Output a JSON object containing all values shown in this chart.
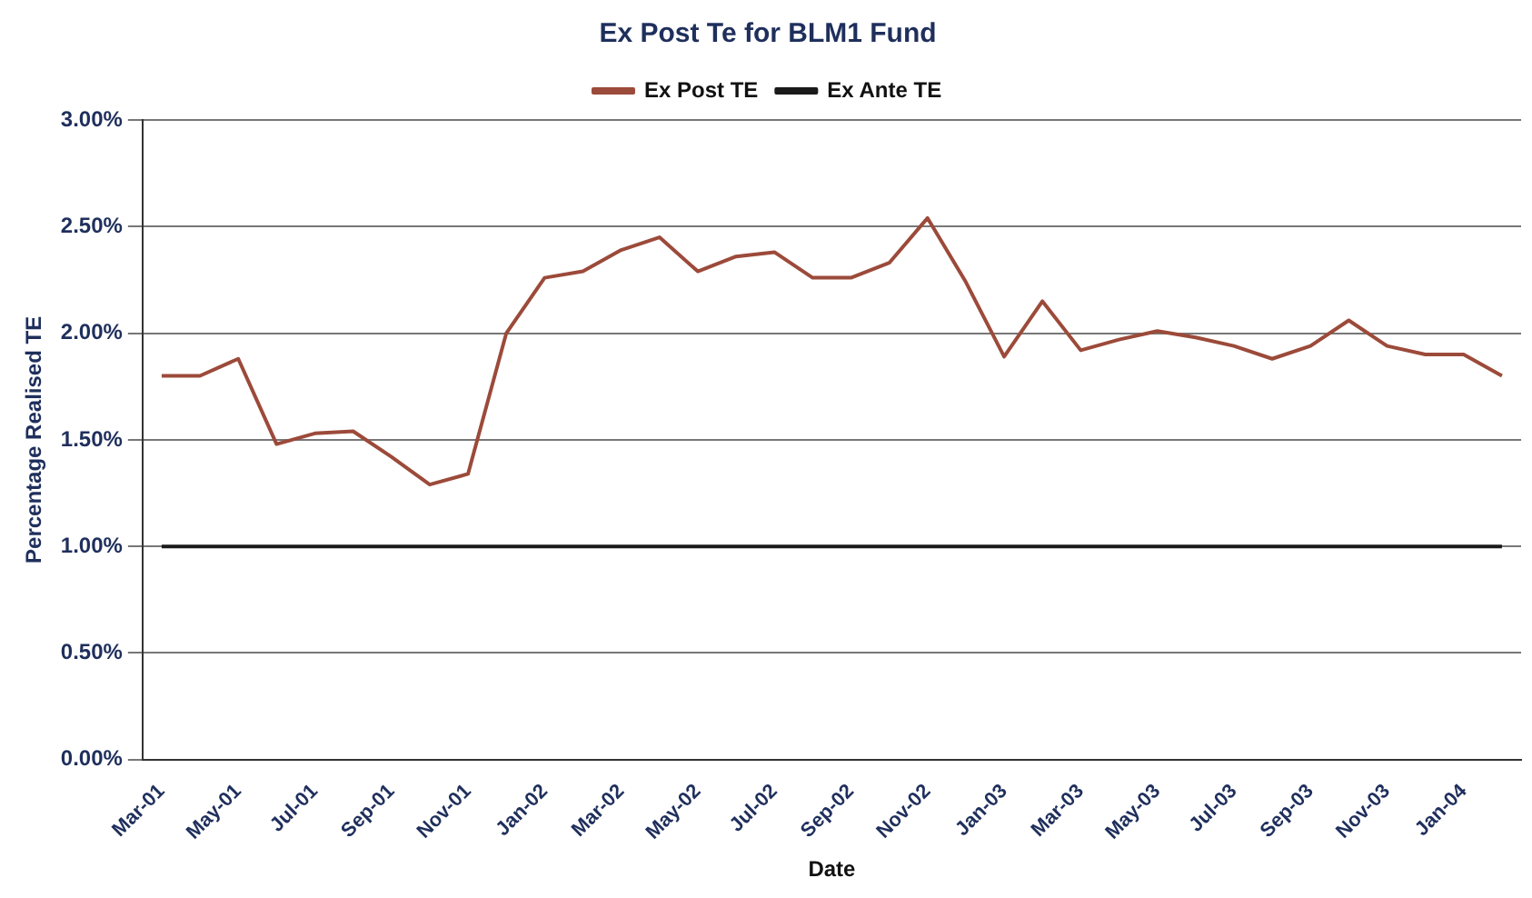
{
  "chart_data": {
    "type": "line",
    "title": "Ex Post Te for BLM1 Fund",
    "xlabel": "Date",
    "ylabel": "Percentage Realised TE",
    "categories": [
      "Mar-01",
      null,
      "May-01",
      null,
      "Jul-01",
      null,
      "Sep-01",
      null,
      "Nov-01",
      null,
      "Jan-02",
      null,
      "Mar-02",
      null,
      "May-02",
      null,
      "Jul-02",
      null,
      "Sep-02",
      null,
      "Nov-02",
      null,
      "Jan-03",
      null,
      "Mar-03",
      null,
      "May-03",
      null,
      "Jul-03",
      null,
      "Sep-03",
      null,
      "Nov-03",
      null,
      "Jan-04",
      null
    ],
    "series": [
      {
        "name": "Ex Post TE",
        "color": "#9c4a3a",
        "values": [
          1.8,
          1.8,
          1.88,
          1.48,
          1.53,
          1.54,
          1.42,
          1.29,
          1.34,
          2.0,
          2.26,
          2.29,
          2.39,
          2.45,
          2.29,
          2.36,
          2.38,
          2.26,
          2.26,
          2.33,
          2.54,
          2.24,
          1.89,
          2.15,
          1.92,
          1.97,
          2.01,
          1.98,
          1.94,
          1.88,
          1.94,
          2.06,
          1.94,
          1.9,
          1.9,
          1.8
        ]
      },
      {
        "name": "Ex Ante TE",
        "color": "#1a1a1a",
        "values": [
          1.0,
          1.0,
          1.0,
          1.0,
          1.0,
          1.0,
          1.0,
          1.0,
          1.0,
          1.0,
          1.0,
          1.0,
          1.0,
          1.0,
          1.0,
          1.0,
          1.0,
          1.0,
          1.0,
          1.0,
          1.0,
          1.0,
          1.0,
          1.0,
          1.0,
          1.0,
          1.0,
          1.0,
          1.0,
          1.0,
          1.0,
          1.0,
          1.0,
          1.0,
          1.0,
          1.0
        ]
      }
    ],
    "ylim": [
      0,
      3
    ],
    "yticks": [
      {
        "value": 0,
        "label": "0.00%"
      },
      {
        "value": 0.5,
        "label": "0.50%"
      },
      {
        "value": 1,
        "label": "1.00%"
      },
      {
        "value": 1.5,
        "label": "1.50%"
      },
      {
        "value": 2,
        "label": "2.00%"
      },
      {
        "value": 2.5,
        "label": "2.50%"
      },
      {
        "value": 3,
        "label": "3.00%"
      }
    ],
    "grid": "y",
    "legend": "top",
    "marker": "none",
    "line_style": "solid"
  }
}
